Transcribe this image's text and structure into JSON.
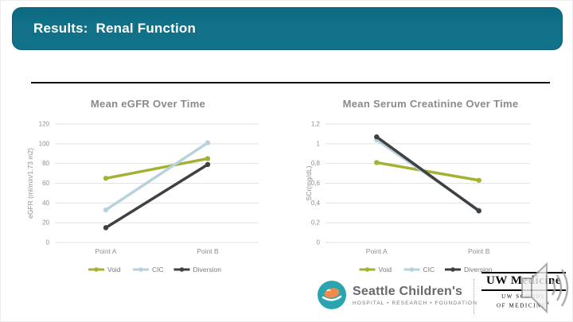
{
  "slide": {
    "title": "Results:  Renal Function"
  },
  "chart_data": [
    {
      "type": "line",
      "title": "Mean eGFR Over Time",
      "xlabel": "",
      "ylabel": "eGFR (ml/min/1.73 m2)",
      "ylim": [
        0,
        120
      ],
      "y_tick_labels": [
        "120",
        "100",
        "80",
        "60",
        "40",
        "20",
        "0"
      ],
      "categories": [
        "Point A",
        "Point B"
      ],
      "grid": true,
      "legend_position": "bottom",
      "series": [
        {
          "name": "Void",
          "color": "#a3b233",
          "values": [
            65,
            85
          ]
        },
        {
          "name": "CIC",
          "color": "#b7d2dd",
          "values": [
            33,
            101
          ]
        },
        {
          "name": "Diversion",
          "color": "#404043",
          "values": [
            15,
            79
          ]
        }
      ]
    },
    {
      "type": "line",
      "title": "Mean Serum Creatinine Over Time",
      "xlabel": "",
      "ylabel": "SCr(mg/dL)",
      "ylim": [
        0,
        1.2
      ],
      "y_tick_labels": [
        "1,2",
        "1",
        "0,8",
        "0,6",
        "0,4",
        "0,2",
        "0"
      ],
      "categories": [
        "Point A",
        "Point B"
      ],
      "grid": true,
      "legend_position": "bottom",
      "series": [
        {
          "name": "Void",
          "color": "#a3b233",
          "values": [
            0.81,
            0.63
          ]
        },
        {
          "name": "CIC",
          "color": "#b7d2dd",
          "values": [
            1.04,
            0.33
          ]
        },
        {
          "name": "Diversion",
          "color": "#404043",
          "values": [
            1.07,
            0.32
          ]
        }
      ]
    }
  ],
  "footer": {
    "seattle_childrens": {
      "name": "Seattle Children's",
      "tagline": "HOSPITAL • RESEARCH • FOUNDATION"
    },
    "uw_medicine": {
      "name": "UW Medicine",
      "school_line1": "UW SCHOOL",
      "school_line2": "OF MEDICINE",
      "registered_mark": "®"
    }
  },
  "colors": {
    "title_bar": "#0f7189",
    "chart_title_text": "#8a8a8a",
    "axis_text": "#8f8f8f",
    "gridline": "#e2e2e2",
    "series_void": "#a3b233",
    "series_cic": "#b7d2dd",
    "series_diversion": "#404043",
    "sc_teal": "#2aa5af",
    "sc_orange": "#f08a4b"
  }
}
